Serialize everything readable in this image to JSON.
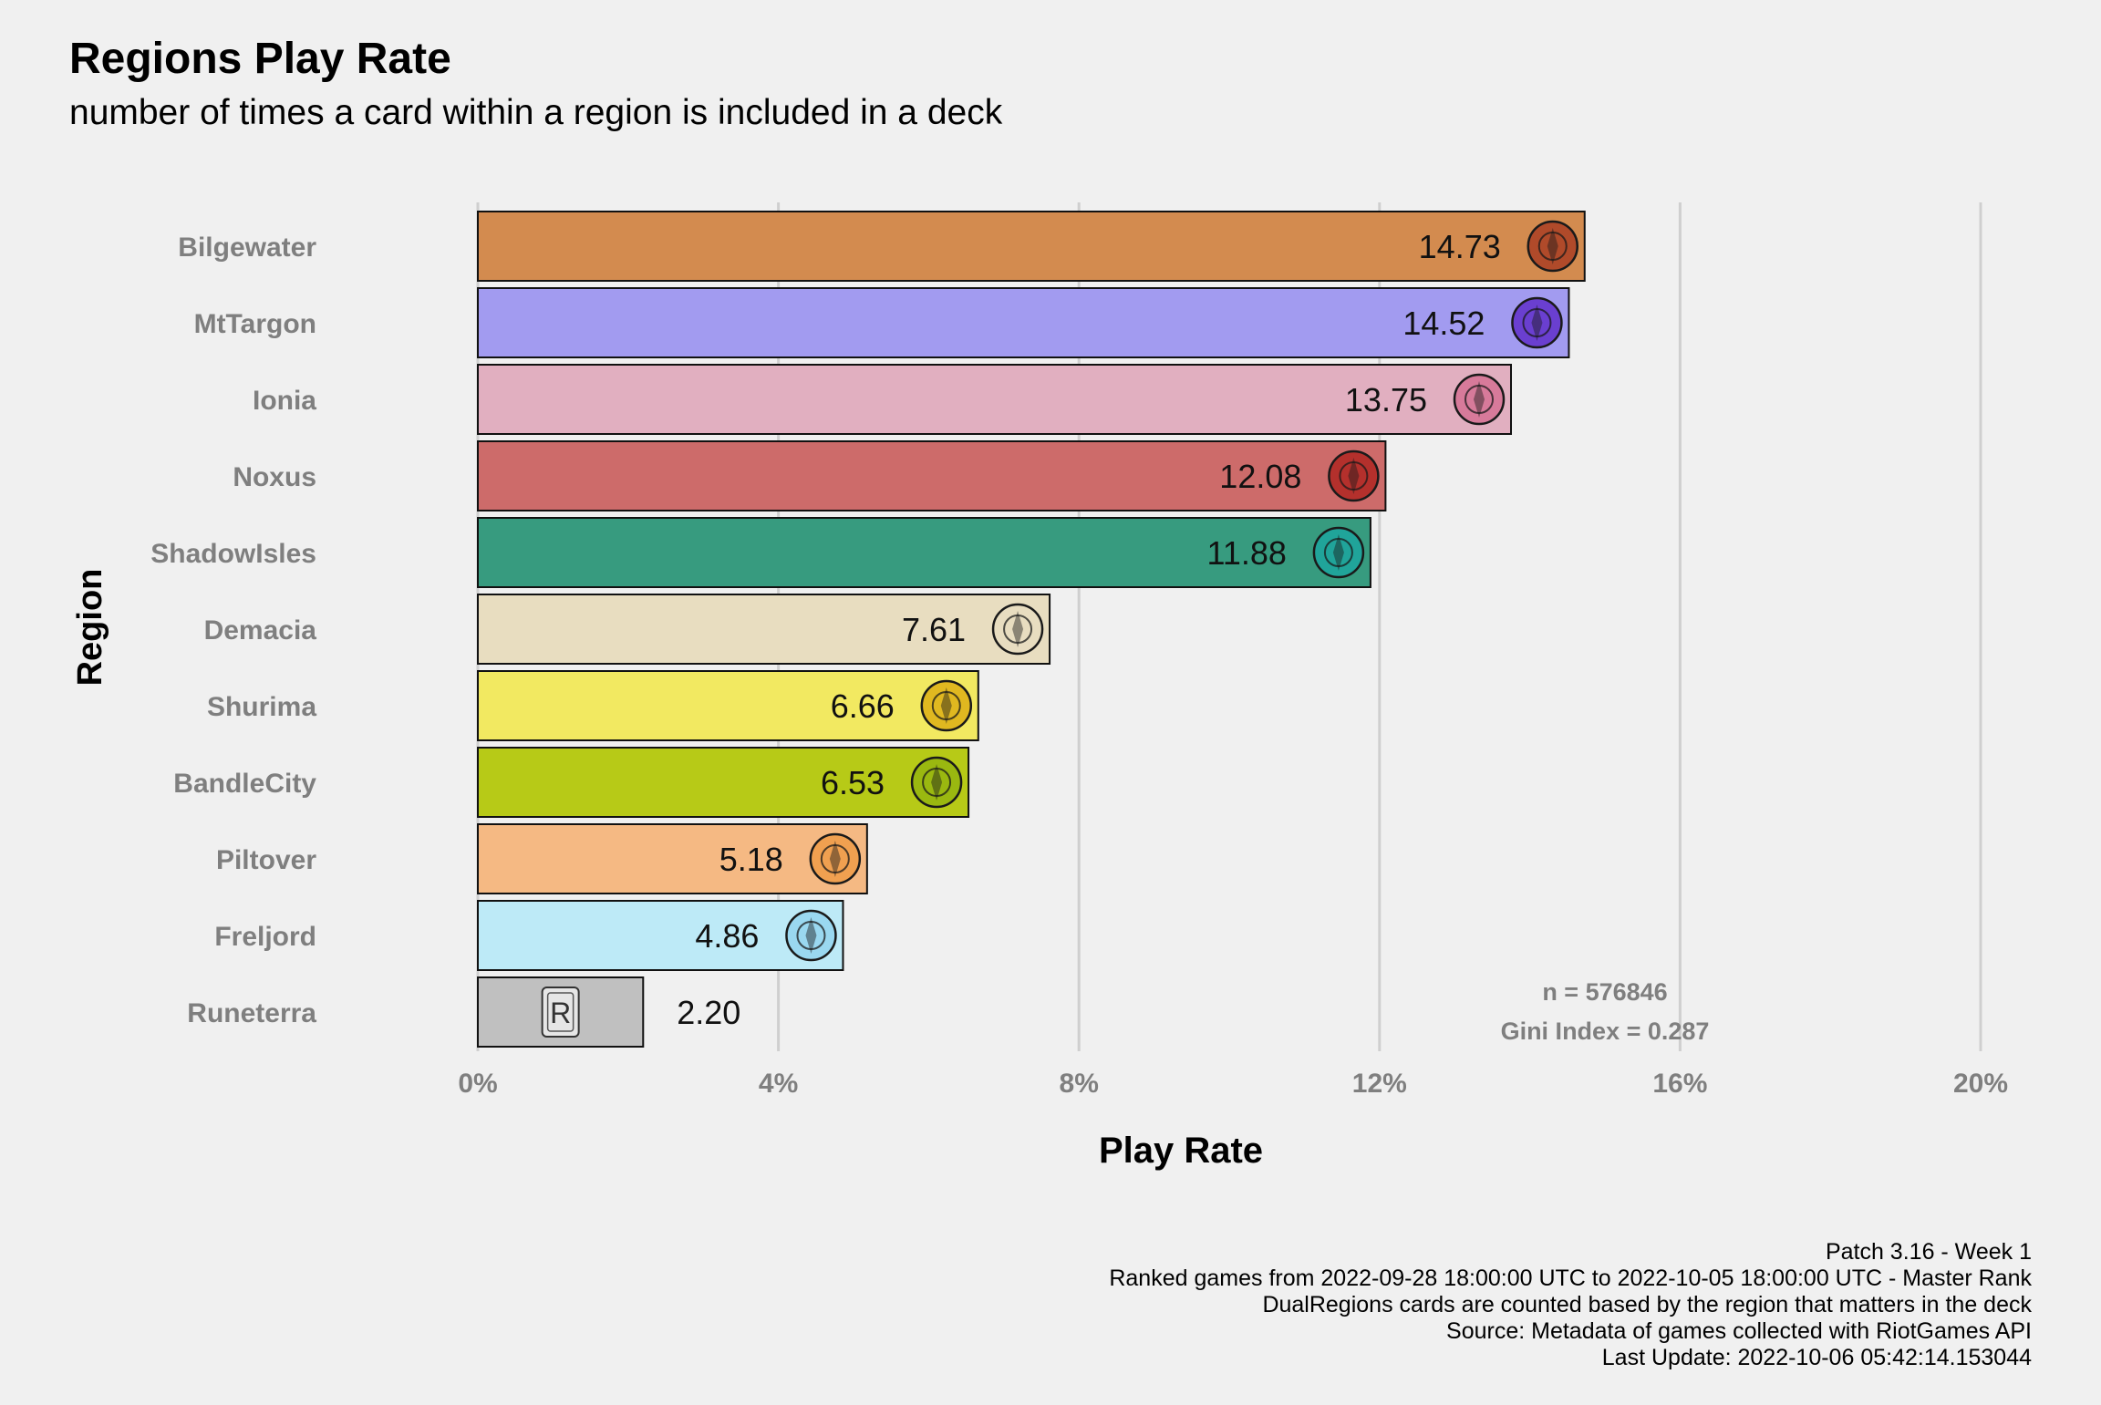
{
  "chart_data": {
    "type": "bar",
    "orientation": "horizontal",
    "title": "Regions Play Rate",
    "subtitle": "number of times a card within a region is included in a deck",
    "xlabel": "Play Rate",
    "ylabel": "Region",
    "xlim": [
      0,
      20
    ],
    "x_ticks": [
      0,
      4,
      8,
      12,
      16,
      20
    ],
    "x_tick_labels": [
      "0%",
      "4%",
      "8%",
      "12%",
      "16%",
      "20%"
    ],
    "grid": "vertical major",
    "categories": [
      "Bilgewater",
      "MtTargon",
      "Ionia",
      "Noxus",
      "ShadowIsles",
      "Demacia",
      "Shurima",
      "BandleCity",
      "Piltover",
      "Freljord",
      "Runeterra"
    ],
    "values": [
      14.73,
      14.52,
      13.75,
      12.08,
      11.88,
      7.61,
      6.66,
      6.53,
      5.18,
      4.86,
      2.2
    ],
    "value_labels": [
      "14.73",
      "14.52",
      "13.75",
      "12.08",
      "11.88",
      "7.61",
      "6.66",
      "6.53",
      "5.18",
      "4.86",
      "2.20"
    ],
    "colors": [
      "#d38b4f",
      "#a29bf0",
      "#e1afc0",
      "#cd6b6a",
      "#379b7f",
      "#e8ddc0",
      "#f2e961",
      "#b7ca17",
      "#f5b983",
      "#bdeaf7",
      "#c0c0c0"
    ],
    "icon_colors": [
      "#b04a2a",
      "#6a3fd0",
      "#d77a9a",
      "#b4302c",
      "#20a49a",
      "#e8ddc0",
      "#e0b820",
      "#9ab810",
      "#f0a050",
      "#9ad8f0",
      "#e6e6e6"
    ],
    "icons": [
      "bilgewater-icon",
      "mttargon-icon",
      "ionia-icon",
      "noxus-icon",
      "shadowisles-icon",
      "demacia-icon",
      "shurima-icon",
      "bandlecity-icon",
      "piltover-icon",
      "freljord-icon",
      "runeterra-icon"
    ],
    "annotations": [
      "n = 576846",
      "Gini Index = 0.287"
    ],
    "caption": [
      "Patch 3.16 - Week 1",
      "Ranked games from 2022-09-28 18:00:00 UTC to 2022-10-05 18:00:00 UTC - Master Rank",
      "DualRegions cards are counted based by the region that matters in the deck",
      "Source: Metadata of games collected with RiotGames API",
      "Last Update: 2022-10-06 05:42:14.153044"
    ]
  }
}
